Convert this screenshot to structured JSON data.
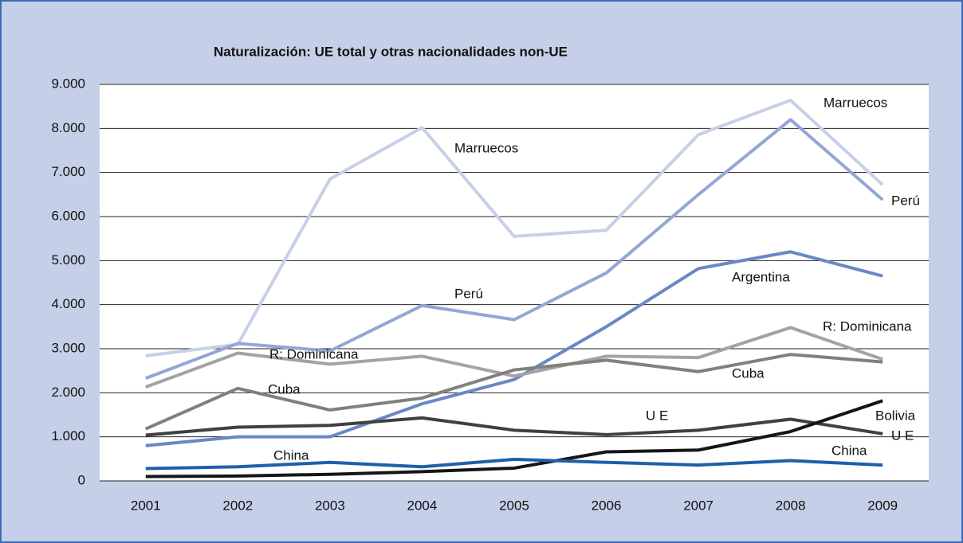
{
  "chart_data": {
    "type": "line",
    "title": "Naturalización:  UE total y otras nacionalidades non-UE",
    "categories": [
      "2001",
      "2002",
      "2003",
      "2004",
      "2005",
      "2006",
      "2007",
      "2008",
      "2009"
    ],
    "ylim": [
      0,
      9000
    ],
    "yticks": [
      0,
      {
        "value": 1000,
        "label": "1.000"
      },
      {
        "value": 2000,
        "label": "2.000"
      },
      {
        "value": 3000,
        "label": "3.000"
      },
      {
        "value": 4000,
        "label": "4.000"
      },
      {
        "value": 5000,
        "label": "5.000"
      },
      {
        "value": 6000,
        "label": "6.000"
      },
      {
        "value": 7000,
        "label": "7.000"
      },
      {
        "value": 8000,
        "label": "8.000"
      },
      {
        "value": 9000,
        "label": "9.000"
      }
    ],
    "grid": true,
    "series": [
      {
        "name": "Marruecos",
        "color": "#c7d0e8",
        "values": [
          2840,
          3100,
          6850,
          8020,
          5550,
          5690,
          7860,
          8640,
          6720
        ]
      },
      {
        "name": "Perú",
        "color": "#93a6d6",
        "values": [
          2330,
          3120,
          2950,
          3980,
          3660,
          4720,
          6500,
          8200,
          6380
        ]
      },
      {
        "name": "Argentina",
        "color": "#6b87c6",
        "values": [
          800,
          1000,
          1000,
          1750,
          2300,
          3500,
          4820,
          5200,
          4650
        ]
      },
      {
        "name": "R: Dominicana",
        "color": "#a3a3a3",
        "values": [
          2130,
          2900,
          2650,
          2830,
          2380,
          2830,
          2800,
          3480,
          2760
        ]
      },
      {
        "name": "Cuba",
        "color": "#808080",
        "values": [
          1180,
          2100,
          1610,
          1880,
          2520,
          2740,
          2480,
          2870,
          2700
        ]
      },
      {
        "name": "U E",
        "color": "#404040",
        "values": [
          1040,
          1220,
          1260,
          1430,
          1150,
          1050,
          1150,
          1400,
          1070
        ]
      },
      {
        "name": "Bolivia",
        "color": "#151515",
        "values": [
          100,
          110,
          150,
          210,
          290,
          660,
          700,
          1120,
          1820
        ]
      },
      {
        "name": "China",
        "color": "#1f5fa8",
        "values": [
          280,
          320,
          420,
          320,
          490,
          420,
          360,
          460,
          360
        ]
      }
    ]
  }
}
